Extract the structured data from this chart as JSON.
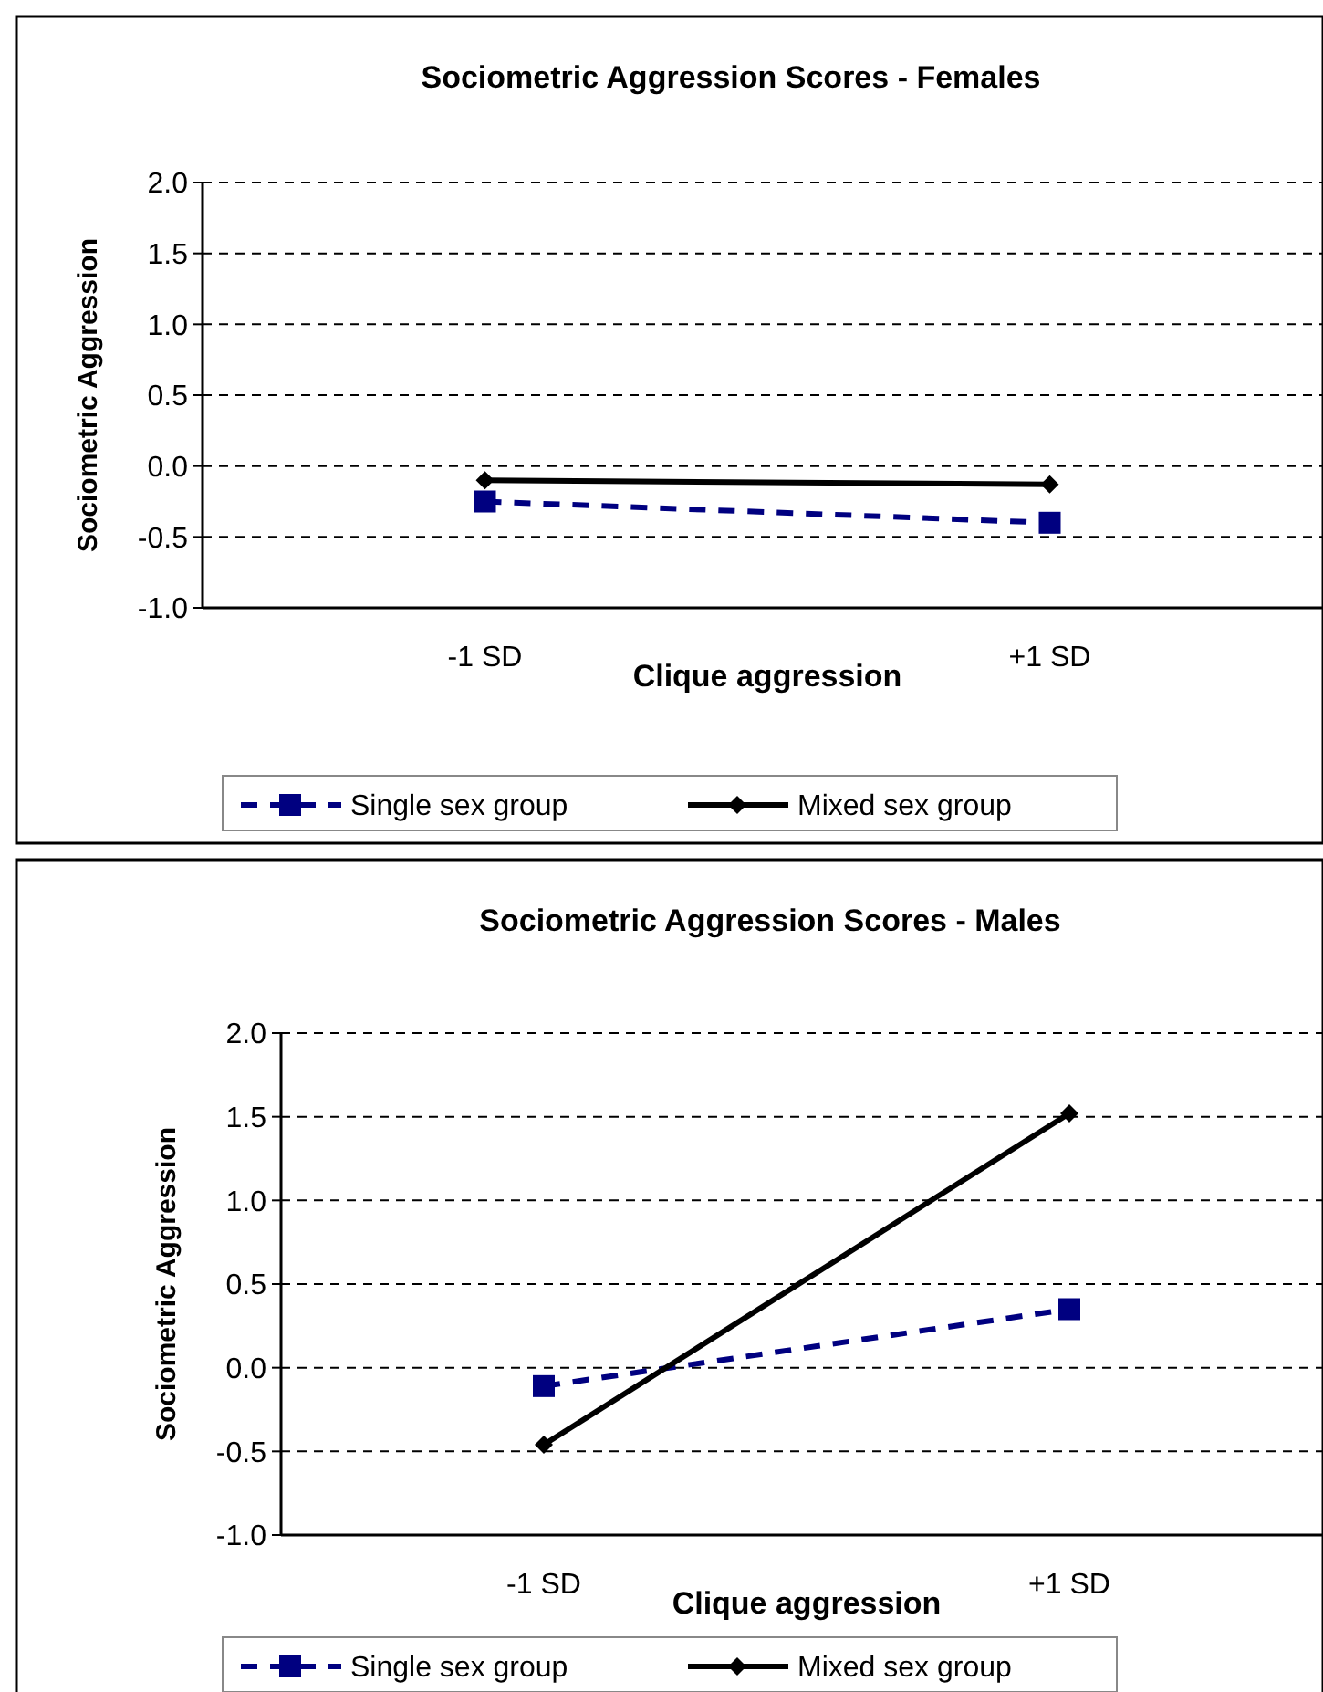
{
  "chart_data": [
    {
      "type": "line",
      "title": "Sociometric Aggression Scores - Females",
      "xlabel": "Clique aggression",
      "ylabel": "Sociometric Aggression",
      "categories": [
        "-1 SD",
        "+1 SD"
      ],
      "ylim": [
        -1,
        2
      ],
      "yticks": [
        {
          "value": -1,
          "label": "-1.0"
        },
        {
          "value": -0.5,
          "label": "-0.5"
        },
        {
          "value": 0,
          "label": "0.0"
        },
        {
          "value": 0.5,
          "label": "0.5"
        },
        {
          "value": 1,
          "label": "1.0"
        },
        {
          "value": 1.5,
          "label": "1.5"
        },
        {
          "value": 2,
          "label": "2.0"
        }
      ],
      "grid": "y",
      "legend": "bottom",
      "series": [
        {
          "name": "Single sex group",
          "color": "#000080",
          "values": [
            -0.25,
            -0.4
          ],
          "marker": "square",
          "line_style": "dashed"
        },
        {
          "name": "Mixed sex group",
          "color": "#000000",
          "values": [
            -0.1,
            -0.13
          ],
          "marker": "diamond",
          "line_style": "solid"
        }
      ]
    },
    {
      "type": "line",
      "title": "Sociometric Aggression Scores - Males",
      "xlabel": "Clique aggression",
      "ylabel": "Sociometric Aggression",
      "categories": [
        "-1 SD",
        "+1 SD"
      ],
      "ylim": [
        -1,
        2
      ],
      "yticks": [
        {
          "value": -1,
          "label": "-1.0"
        },
        {
          "value": -0.5,
          "label": "-0.5"
        },
        {
          "value": 0,
          "label": "0.0"
        },
        {
          "value": 0.5,
          "label": "0.5"
        },
        {
          "value": 1,
          "label": "1.0"
        },
        {
          "value": 1.5,
          "label": "1.5"
        },
        {
          "value": 2,
          "label": "2.0"
        }
      ],
      "grid": "y",
      "legend": "bottom",
      "series": [
        {
          "name": "Single sex group",
          "color": "#000080",
          "values": [
            -0.11,
            0.35
          ],
          "marker": "square",
          "line_style": "dashed"
        },
        {
          "name": "Mixed sex group",
          "color": "#000000",
          "values": [
            -0.46,
            1.52
          ],
          "marker": "diamond",
          "line_style": "solid"
        }
      ]
    }
  ]
}
